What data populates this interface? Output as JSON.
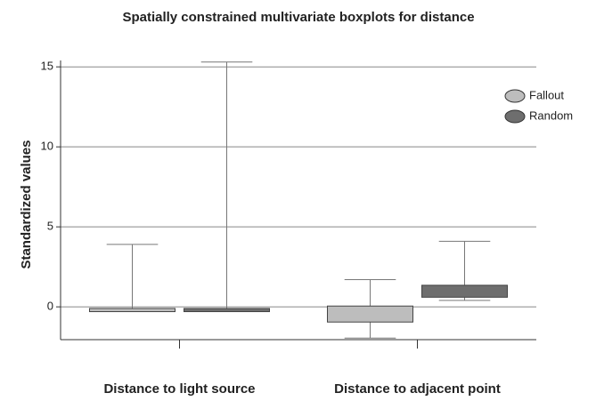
{
  "chart_data": {
    "type": "box",
    "title": "Spatially constrained multivariate boxplots for distance",
    "ylabel": "Standardized values",
    "categories": [
      "Distance to light source",
      "Distance to adjacent point"
    ],
    "series": [
      {
        "name": "Fallout",
        "color": "#bdbdbd",
        "boxes": [
          {
            "low": -0.3,
            "q1": -0.3,
            "q3": -0.1,
            "high": 3.9
          },
          {
            "low": -1.95,
            "q1": -0.95,
            "q3": 0.05,
            "high": 1.7
          }
        ]
      },
      {
        "name": "Random",
        "color": "#6e6e6e",
        "boxes": [
          {
            "low": -0.3,
            "q1": -0.3,
            "q3": -0.1,
            "high": 15.3
          },
          {
            "low": 0.4,
            "q1": 0.6,
            "q3": 1.35,
            "high": 4.1
          }
        ]
      }
    ],
    "ylim": [
      -2.05,
      15.4
    ],
    "yticks": [
      0,
      5,
      10,
      15
    ],
    "grid": true,
    "legend": "upper right"
  }
}
